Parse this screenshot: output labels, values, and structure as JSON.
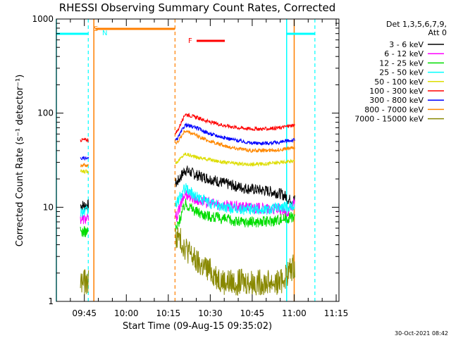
{
  "chart_data": {
    "type": "line",
    "title": "RHESSI Observing Summary Count Rates, Corrected",
    "xlabel": "Start Time (09-Aug-15 09:35:02)",
    "ylabel": "Corrected Count Rate (s⁻¹ detector⁻¹)",
    "y_scale": "log",
    "ylim": [
      1,
      1000
    ],
    "xlim_minutes": [
      0,
      101
    ],
    "x_ticks": [
      {
        "minute": 10,
        "label": "09:45"
      },
      {
        "minute": 25,
        "label": "10:00"
      },
      {
        "minute": 40,
        "label": "10:15"
      },
      {
        "minute": 55,
        "label": "10:30"
      },
      {
        "minute": 70,
        "label": "10:45"
      },
      {
        "minute": 85,
        "label": "11:00"
      },
      {
        "minute": 100,
        "label": "11:15"
      }
    ],
    "y_ticks": [
      {
        "value": 1,
        "label": "1"
      },
      {
        "value": 10,
        "label": "10"
      },
      {
        "value": 100,
        "label": "100"
      },
      {
        "value": 1000,
        "label": "1000"
      }
    ],
    "legend": {
      "position": "right",
      "header_line1": "Det 1,3,5,6,7,9,",
      "header_line2": "Att 0",
      "entries": [
        {
          "label": "3 - 6 keV",
          "color": "#000000"
        },
        {
          "label": "6 - 12 keV",
          "color": "#ff00ff"
        },
        {
          "label": "12 - 25 keV",
          "color": "#00dd00"
        },
        {
          "label": "25 - 50 keV",
          "color": "#00ffff"
        },
        {
          "label": "50 - 100 keV",
          "color": "#dddd00"
        },
        {
          "label": "100 - 300 keV",
          "color": "#ff0000"
        },
        {
          "label": "300 - 800 keV",
          "color": "#0000ff"
        },
        {
          "label": "800 - 7000 keV",
          "color": "#ff8800"
        },
        {
          "label": "7000 - 15000 keV",
          "color": "#888800"
        }
      ]
    },
    "flags": [
      {
        "label": "S",
        "color": "#ff7f00"
      },
      {
        "label": "N",
        "color": "#00ffff"
      },
      {
        "label": "F",
        "color": "#ff0000"
      }
    ],
    "timestamp": "30-Oct-2021 08:42",
    "orbit_markers": {
      "cyan_solid_minutes": [
        0,
        82.3
      ],
      "cyan_dashed_minutes": [
        11.4,
        92.4
      ],
      "orange_solid_minutes": [
        13.4,
        85.0
      ],
      "orange_dashed_minutes": [
        42.4
      ]
    },
    "segments_minutes": [
      [
        8.6,
        11.5
      ],
      [
        42.6,
        85.3
      ]
    ],
    "series": [
      {
        "name": "3 - 6 keV",
        "color": "#000000",
        "values": [
          [
            8.6,
            10.5
          ],
          [
            11.5,
            10.5
          ],
          [
            43,
            18
          ],
          [
            46,
            25
          ],
          [
            50,
            22
          ],
          [
            55,
            20
          ],
          [
            60,
            18
          ],
          [
            65,
            16.5
          ],
          [
            70,
            15.5
          ],
          [
            75,
            15
          ],
          [
            80,
            14
          ],
          [
            82,
            13
          ],
          [
            83,
            12
          ],
          [
            85,
            12
          ]
        ]
      },
      {
        "name": "6 - 12 keV",
        "color": "#ff00ff",
        "values": [
          [
            8.6,
            7.5
          ],
          [
            11.5,
            7.5
          ],
          [
            43,
            8
          ],
          [
            46,
            14
          ],
          [
            50,
            12
          ],
          [
            55,
            11
          ],
          [
            60,
            10.5
          ],
          [
            65,
            10
          ],
          [
            70,
            10
          ],
          [
            75,
            9.5
          ],
          [
            80,
            9.5
          ],
          [
            82,
            8.5
          ],
          [
            85,
            11
          ]
        ]
      },
      {
        "name": "12 - 25 keV",
        "color": "#00dd00",
        "values": [
          [
            8.6,
            5.5
          ],
          [
            11.5,
            5.5
          ],
          [
            43,
            6
          ],
          [
            46,
            11
          ],
          [
            50,
            9
          ],
          [
            55,
            8
          ],
          [
            60,
            7.5
          ],
          [
            65,
            7
          ],
          [
            70,
            7
          ],
          [
            75,
            7
          ],
          [
            80,
            7.5
          ],
          [
            85,
            8
          ]
        ]
      },
      {
        "name": "25 - 50 keV",
        "color": "#00ffff",
        "values": [
          [
            8.6,
            9
          ],
          [
            11.5,
            9
          ],
          [
            43,
            11
          ],
          [
            46,
            16
          ],
          [
            50,
            13
          ],
          [
            55,
            11
          ],
          [
            60,
            10
          ],
          [
            65,
            9.5
          ],
          [
            70,
            9.5
          ],
          [
            75,
            9.5
          ],
          [
            80,
            10
          ],
          [
            85,
            10.5
          ]
        ]
      },
      {
        "name": "50 - 100 keV",
        "color": "#dddd00",
        "values": [
          [
            8.6,
            24
          ],
          [
            11.5,
            24
          ],
          [
            43,
            30
          ],
          [
            46,
            37
          ],
          [
            50,
            34
          ],
          [
            55,
            32
          ],
          [
            60,
            30
          ],
          [
            65,
            29
          ],
          [
            70,
            28.5
          ],
          [
            75,
            29
          ],
          [
            80,
            30
          ],
          [
            85,
            31
          ]
        ]
      },
      {
        "name": "100 - 300 keV",
        "color": "#ff0000",
        "values": [
          [
            8.6,
            52
          ],
          [
            11.5,
            52
          ],
          [
            43,
            62
          ],
          [
            46,
            98
          ],
          [
            50,
            90
          ],
          [
            55,
            80
          ],
          [
            60,
            74
          ],
          [
            65,
            70
          ],
          [
            70,
            68
          ],
          [
            75,
            68
          ],
          [
            80,
            70
          ],
          [
            85,
            75
          ]
        ]
      },
      {
        "name": "300 - 800 keV",
        "color": "#0000ff",
        "values": [
          [
            8.6,
            33
          ],
          [
            11.5,
            33
          ],
          [
            43,
            52
          ],
          [
            46,
            75
          ],
          [
            50,
            70
          ],
          [
            55,
            60
          ],
          [
            60,
            55
          ],
          [
            65,
            51
          ],
          [
            70,
            48
          ],
          [
            75,
            48
          ],
          [
            80,
            49
          ],
          [
            85,
            52
          ]
        ]
      },
      {
        "name": "800 - 7000 keV",
        "color": "#ff8800",
        "values": [
          [
            8.6,
            28
          ],
          [
            11.5,
            28
          ],
          [
            43,
            48
          ],
          [
            46,
            65
          ],
          [
            50,
            58
          ],
          [
            55,
            50
          ],
          [
            60,
            45
          ],
          [
            65,
            42
          ],
          [
            70,
            40
          ],
          [
            75,
            40
          ],
          [
            80,
            41
          ],
          [
            85,
            43
          ]
        ]
      },
      {
        "name": "7000 - 15000 keV",
        "color": "#888800",
        "values": [
          [
            8.6,
            1.6
          ],
          [
            11.5,
            1.6
          ],
          [
            43,
            5
          ],
          [
            46,
            3.8
          ],
          [
            50,
            2.6
          ],
          [
            55,
            2.1
          ],
          [
            60,
            1.6
          ],
          [
            65,
            1.6
          ],
          [
            70,
            1.6
          ],
          [
            75,
            1.6
          ],
          [
            80,
            1.6
          ],
          [
            85,
            2.4
          ]
        ]
      }
    ]
  }
}
